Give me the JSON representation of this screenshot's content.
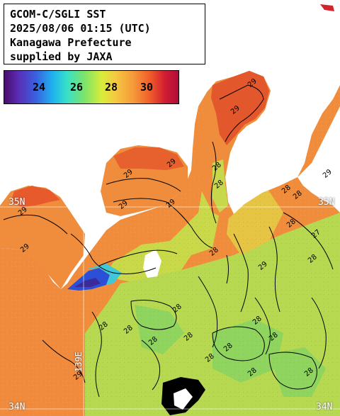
{
  "title": {
    "line1": "GCOM-C/SGLI SST",
    "line2": "2025/08/06 01:15 (UTC)",
    "line3": "Kanagawa Prefecture",
    "line4": "supplied by JAXA"
  },
  "colorbar": {
    "ticks": [
      "24",
      "26",
      "28",
      "30"
    ],
    "colors": {
      "low": "#4a0d6b",
      "mid": "#7ce36a",
      "high": "#b00d3a"
    }
  },
  "lat_labels": {
    "n35_left": "35N",
    "n35_right": "35N",
    "n34_left": "34N",
    "n34_right": "34N"
  },
  "lon_label": "139E",
  "contour_labels": [
    "29",
    "29",
    "29",
    "29",
    "28",
    "29",
    "29",
    "29",
    "29",
    "28",
    "28",
    "28",
    "28",
    "29",
    "28",
    "28",
    "28",
    "28",
    "28",
    "28",
    "27",
    "29",
    "28",
    "28",
    "28",
    "29",
    "28",
    "28",
    "28",
    "28"
  ],
  "colors": {
    "land": "#ffffff",
    "no_data": "#000000",
    "sst_warm": "#f08a3c",
    "sst_mid": "#f6b83e",
    "sst_cool": "#9bd960",
    "grid": "#ffffff"
  }
}
